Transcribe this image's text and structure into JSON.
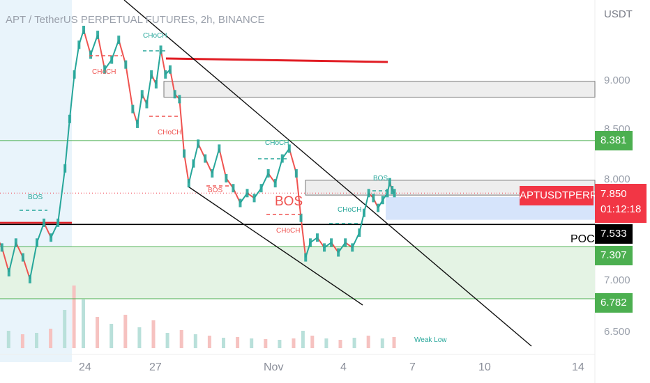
{
  "header": {
    "title": "APT / TetherUS PERPETUAL FUTURES, 2h, BINANCE",
    "unit": "USDT"
  },
  "chart_data": {
    "type": "line",
    "symbol": "APTUSDTPERP",
    "timeframe": "2h",
    "exchange": "BINANCE",
    "y_ticks": [
      "9.000",
      "8.500",
      "8.000",
      "7.000",
      "6.500"
    ],
    "x_ticks": [
      {
        "label": "24",
        "day": 0
      },
      {
        "label": "27",
        "day": 3
      },
      {
        "label": "Nov",
        "day": 8
      },
      {
        "label": "4",
        "day": 11
      },
      {
        "label": "7",
        "day": 14
      },
      {
        "label": "10",
        "day": 17
      },
      {
        "label": "14",
        "day": 21
      }
    ],
    "ylim": [
      6.45,
      9.5
    ],
    "price_series": [
      [
        -3.8,
        7.45
      ],
      [
        -3.5,
        7.3
      ],
      [
        -3.2,
        7.05
      ],
      [
        -2.9,
        7.35
      ],
      [
        -2.6,
        7.2
      ],
      [
        -2.3,
        6.98
      ],
      [
        -2.0,
        7.35
      ],
      [
        -1.7,
        7.55
      ],
      [
        -1.4,
        7.4
      ],
      [
        -1.1,
        7.55
      ],
      [
        -0.8,
        8.1
      ],
      [
        -0.6,
        8.6
      ],
      [
        -0.4,
        9.05
      ],
      [
        -0.2,
        9.35
      ],
      [
        0.0,
        9.5
      ],
      [
        0.3,
        9.25
      ],
      [
        0.6,
        9.45
      ],
      [
        0.9,
        9.1
      ],
      [
        1.2,
        9.2
      ],
      [
        1.5,
        9.4
      ],
      [
        1.8,
        9.15
      ],
      [
        2.1,
        8.7
      ],
      [
        2.3,
        8.55
      ],
      [
        2.5,
        8.85
      ],
      [
        2.7,
        8.75
      ],
      [
        2.9,
        9.05
      ],
      [
        3.1,
        8.95
      ],
      [
        3.3,
        9.3
      ],
      [
        3.5,
        9.05
      ],
      [
        3.7,
        9.1
      ],
      [
        3.9,
        8.85
      ],
      [
        4.1,
        8.8
      ],
      [
        4.3,
        8.25
      ],
      [
        4.5,
        7.95
      ],
      [
        4.7,
        8.15
      ],
      [
        4.9,
        8.35
      ],
      [
        5.2,
        8.2
      ],
      [
        5.5,
        8.05
      ],
      [
        5.8,
        8.3
      ],
      [
        6.1,
        8.0
      ],
      [
        6.4,
        7.9
      ],
      [
        6.7,
        7.75
      ],
      [
        7.0,
        7.85
      ],
      [
        7.3,
        7.8
      ],
      [
        7.6,
        7.9
      ],
      [
        7.9,
        8.05
      ],
      [
        8.2,
        7.95
      ],
      [
        8.5,
        8.2
      ],
      [
        8.8,
        8.3
      ],
      [
        9.1,
        8.05
      ],
      [
        9.3,
        7.6
      ],
      [
        9.5,
        7.2
      ],
      [
        9.7,
        7.35
      ],
      [
        10.0,
        7.4
      ],
      [
        10.3,
        7.3
      ],
      [
        10.6,
        7.35
      ],
      [
        10.9,
        7.25
      ],
      [
        11.2,
        7.35
      ],
      [
        11.5,
        7.3
      ],
      [
        11.8,
        7.45
      ],
      [
        12.0,
        7.65
      ],
      [
        12.2,
        7.85
      ],
      [
        12.4,
        7.8
      ],
      [
        12.6,
        7.7
      ],
      [
        12.8,
        7.78
      ],
      [
        13.0,
        7.85
      ],
      [
        13.1,
        7.96
      ],
      [
        13.2,
        7.88
      ],
      [
        13.3,
        7.85
      ]
    ],
    "volume_series": [
      [
        -3.8,
        18
      ],
      [
        -3.2,
        25
      ],
      [
        -2.6,
        20
      ],
      [
        -2.0,
        22
      ],
      [
        -1.4,
        28
      ],
      [
        -0.8,
        55
      ],
      [
        -0.4,
        90
      ],
      [
        0.0,
        70
      ],
      [
        0.6,
        45
      ],
      [
        1.2,
        35
      ],
      [
        1.8,
        48
      ],
      [
        2.4,
        30
      ],
      [
        3.0,
        40
      ],
      [
        3.6,
        22
      ],
      [
        4.2,
        26
      ],
      [
        4.8,
        20
      ],
      [
        5.4,
        18
      ],
      [
        6.0,
        15
      ],
      [
        6.6,
        16
      ],
      [
        7.2,
        14
      ],
      [
        7.8,
        13
      ],
      [
        8.4,
        12
      ],
      [
        9.0,
        14
      ],
      [
        9.4,
        25
      ],
      [
        9.8,
        18
      ],
      [
        10.4,
        14
      ],
      [
        11.0,
        12
      ],
      [
        11.6,
        15
      ],
      [
        12.2,
        18
      ],
      [
        12.8,
        14
      ],
      [
        13.3,
        16
      ]
    ],
    "horizontal_levels": [
      {
        "name": "red-resistance-line",
        "y": 9.19
      },
      {
        "name": "poc-line",
        "y": 7.533
      },
      {
        "name": "green-line-8381",
        "y": 8.381
      },
      {
        "name": "green-line-7307",
        "y": 7.307
      },
      {
        "name": "green-line-6782",
        "y": 6.782
      }
    ],
    "zones": [
      {
        "name": "supply-zone-grey",
        "y_top": 8.98,
        "y_bottom": 8.82
      },
      {
        "name": "resistance-zone-grey",
        "y_top": 7.98,
        "y_bottom": 7.83
      },
      {
        "name": "demand-zone-blue",
        "y_top": 7.81,
        "y_bottom": 7.58
      },
      {
        "name": "demand-zone-green",
        "y_top": 7.307,
        "y_bottom": 6.782
      }
    ],
    "price_tags": {
      "current_symbol": "APTUSDTPERP",
      "current_price": "7.850",
      "countdown": "01:12:18",
      "poc_label": "POC",
      "poc_price": "7.533",
      "level_1": "8.381",
      "level_2": "7.307",
      "level_3": "6.782"
    },
    "annotations": {
      "choch": "CHoCH",
      "bos": "BOS",
      "weak_low": "Weak Low"
    },
    "colors": {
      "up": "#26a69a",
      "down": "#ef5350",
      "red_level": "#e11d24",
      "green_level": "#4caf50",
      "current_tag": "#f23645",
      "poc_tag": "#000000",
      "level_tag": "#4caf50"
    }
  }
}
